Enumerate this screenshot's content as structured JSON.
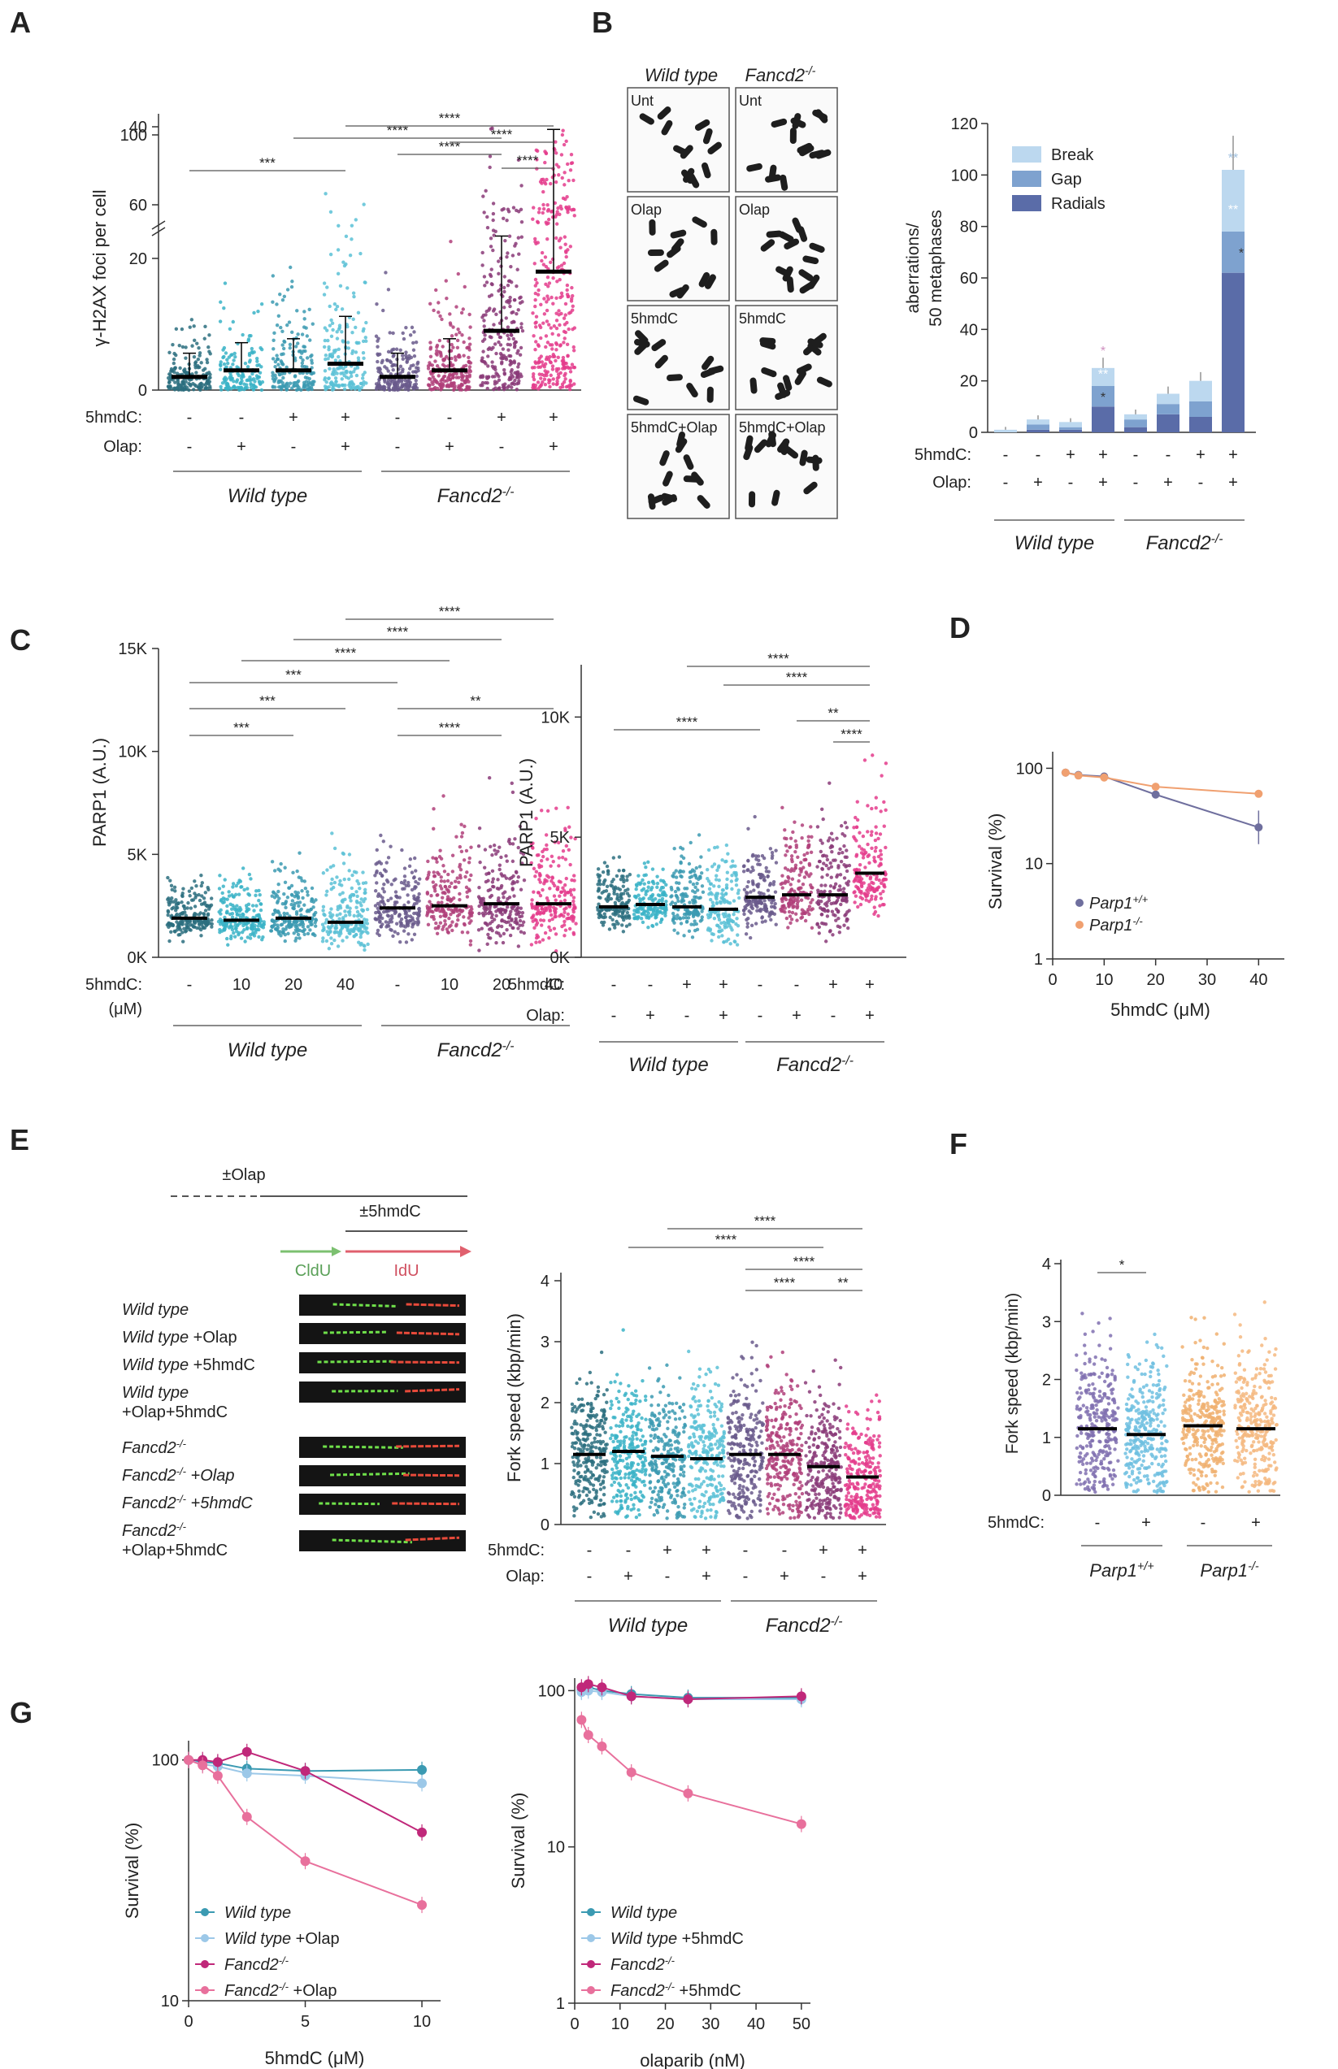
{
  "panel_letters": [
    "A",
    "B",
    "C",
    "D",
    "E",
    "F",
    "G"
  ],
  "groups": {
    "wt": "Wild type",
    "fd": "Fancd2",
    "fd_sup": "-/-",
    "parp_pp": "Parp1",
    "parp_pp_sup": "+/+",
    "parp_mm": "Parp1",
    "parp_mm_sup": "-/-"
  },
  "row_labels": {
    "hmdc": "5hmdC:",
    "olap": "Olap:",
    "um": "(μM)"
  },
  "signs": {
    "minus": "-",
    "plus": "+"
  },
  "colors": {
    "wt": "#2b6f7f",
    "wt_olap": "#3ab3c7",
    "wt_hmdc": "#3b9ab2",
    "wt_both": "#5bc1d6",
    "fd": "#6a5a8c",
    "fd_olap": "#b0407a",
    "fd_hmdc": "#8a3a78",
    "fd_both": "#e43c8c",
    "bar_break": "#bcd8ef",
    "bar_gap": "#7ea2cf",
    "bar_radial": "#5a6ca8",
    "parp_pp": "#6f6f9e",
    "parp_mm": "#f0a070"
  },
  "panelA": {
    "ylabel": "γ-H2AX foci per cell",
    "yticks": [
      "0",
      "20",
      "40",
      "60",
      "100"
    ],
    "medians": [
      2,
      3,
      3,
      4,
      2,
      3,
      9,
      18
    ],
    "sig": [
      "***",
      "****",
      "****",
      "****",
      "****",
      "****"
    ],
    "outer_dots_note": ""
  },
  "panelB": {
    "col_headers": [
      "Wild type",
      "Fancd2"
    ],
    "col_sup": "-/-",
    "row_labels": [
      "Unt",
      "Olap",
      "5hmdC",
      "5hmdC+Olap"
    ],
    "chart_data": {
      "type": "bar",
      "stacked": true,
      "ylabel": "aberrations/\n50 metaphases",
      "ylim": [
        0,
        120
      ],
      "yticks": [
        "0",
        "20",
        "40",
        "60",
        "80",
        "100",
        "120"
      ],
      "legend": [
        "Break",
        "Gap",
        "Radials"
      ],
      "series": [
        {
          "name": "Radials",
          "values": [
            0,
            1,
            1,
            10,
            2,
            7,
            6,
            62
          ]
        },
        {
          "name": "Gap",
          "values": [
            0,
            2,
            1,
            8,
            3,
            4,
            6,
            16
          ]
        },
        {
          "name": "Break",
          "values": [
            1,
            2,
            2,
            7,
            2,
            4,
            8,
            24
          ]
        }
      ],
      "totals": [
        1,
        5,
        4,
        25,
        7,
        15,
        20,
        102
      ],
      "stars": [
        "*",
        "**",
        "*",
        "**",
        "**",
        "*"
      ]
    }
  },
  "panelC": {
    "ylabel": "PARP1 (A.U.)",
    "left": {
      "yticks": [
        "0K",
        "5K",
        "10K",
        "15K"
      ],
      "doses": [
        "-",
        "10",
        "20",
        "40",
        "-",
        "10",
        "20",
        "40"
      ],
      "medians": [
        1.9,
        1.8,
        1.9,
        1.7,
        2.4,
        2.5,
        2.6,
        2.6
      ],
      "sig": [
        "****",
        "****",
        "****",
        "***",
        "***",
        "**",
        "***",
        "****"
      ]
    },
    "right": {
      "yticks": [
        "0K",
        "5K",
        "10K"
      ],
      "medians": [
        2.1,
        2.2,
        2.1,
        2.0,
        2.5,
        2.6,
        2.6,
        3.5
      ],
      "sig": [
        "****",
        "****",
        "****",
        "**",
        "****"
      ]
    }
  },
  "panelD": {
    "chart_data": {
      "type": "line",
      "xlabel": "5hmdC (μM)",
      "ylabel": "Survival (%)",
      "xticks": [
        "0",
        "10",
        "20",
        "30",
        "40"
      ],
      "yticks": [
        "1",
        "10",
        "100"
      ],
      "x": [
        2.5,
        5,
        10,
        20,
        40
      ],
      "series": [
        {
          "name": "Parp1+/+",
          "values": [
            90,
            85,
            82,
            53,
            24
          ]
        },
        {
          "name": "Parp1-/-",
          "values": [
            90,
            84,
            80,
            64,
            54
          ]
        }
      ]
    }
  },
  "panelE": {
    "treat": {
      "olap": "±Olap",
      "hmdc": "±5hmdC",
      "cldu": "CldU",
      "idu": "IdU"
    },
    "fiber_labels": [
      "Wild type",
      "Wild type +Olap",
      "Wild type +5hmdC",
      "Wild type",
      "+Olap+5hmdC",
      "Fancd2",
      "Fancd2 +Olap",
      "Fancd2 +5hmdC",
      "Fancd2",
      "+Olap+5hmdC"
    ],
    "ylabel": "Fork speed (kbp/min)",
    "yticks": [
      "0",
      "1",
      "2",
      "3",
      "4"
    ],
    "medians": [
      1.15,
      1.2,
      1.12,
      1.08,
      1.15,
      1.15,
      0.95,
      0.78
    ],
    "sig": [
      "****",
      "****",
      "****",
      "****",
      "**"
    ]
  },
  "panelF": {
    "ylabel": "Fork speed (kbp/min)",
    "yticks": [
      "0",
      "1",
      "2",
      "3",
      "4"
    ],
    "medians": [
      1.15,
      1.05,
      1.2,
      1.15
    ],
    "sig": [
      "*"
    ]
  },
  "panelG": {
    "left": {
      "chart_data": {
        "type": "line",
        "xlabel": "5hmdC (μM)",
        "ylabel": "Survival (%)",
        "xticks": [
          "0",
          "5",
          "10"
        ],
        "yticks": [
          "10",
          "100"
        ],
        "x": [
          0,
          0.6,
          1.25,
          2.5,
          5,
          10
        ],
        "series": [
          {
            "name": "Wild type",
            "values": [
              100,
              98,
              97,
              92,
              90,
              91
            ]
          },
          {
            "name": "Wild type +Olap",
            "values": [
              100,
              96,
              94,
              88,
              86,
              80
            ]
          },
          {
            "name": "Fancd2-/-",
            "values": [
              100,
              100,
              98,
              108,
              90,
              50
            ]
          },
          {
            "name": "Fancd2-/- +Olap",
            "values": [
              100,
              95,
              86,
              58,
              38,
              25
            ]
          }
        ]
      }
    },
    "right": {
      "chart_data": {
        "type": "line",
        "xlabel": "olaparib (nM)",
        "ylabel": "Survival (%)",
        "xticks": [
          "0",
          "10",
          "20",
          "30",
          "40",
          "50"
        ],
        "yticks": [
          "1",
          "10",
          "100"
        ],
        "x": [
          1.5,
          3,
          6,
          12.5,
          25,
          50
        ],
        "series": [
          {
            "name": "Wild type",
            "values": [
              100,
              105,
              100,
              95,
              90,
              90
            ]
          },
          {
            "name": "Wild type +5hmdC",
            "values": [
              98,
              100,
              98,
              92,
              88,
              88
            ]
          },
          {
            "name": "Fancd2-/-",
            "values": [
              105,
              110,
              105,
              92,
              88,
              92
            ]
          },
          {
            "name": "Fancd2-/- +5hmdC",
            "values": [
              65,
              52,
              44,
              30,
              22,
              14
            ]
          }
        ]
      }
    }
  }
}
